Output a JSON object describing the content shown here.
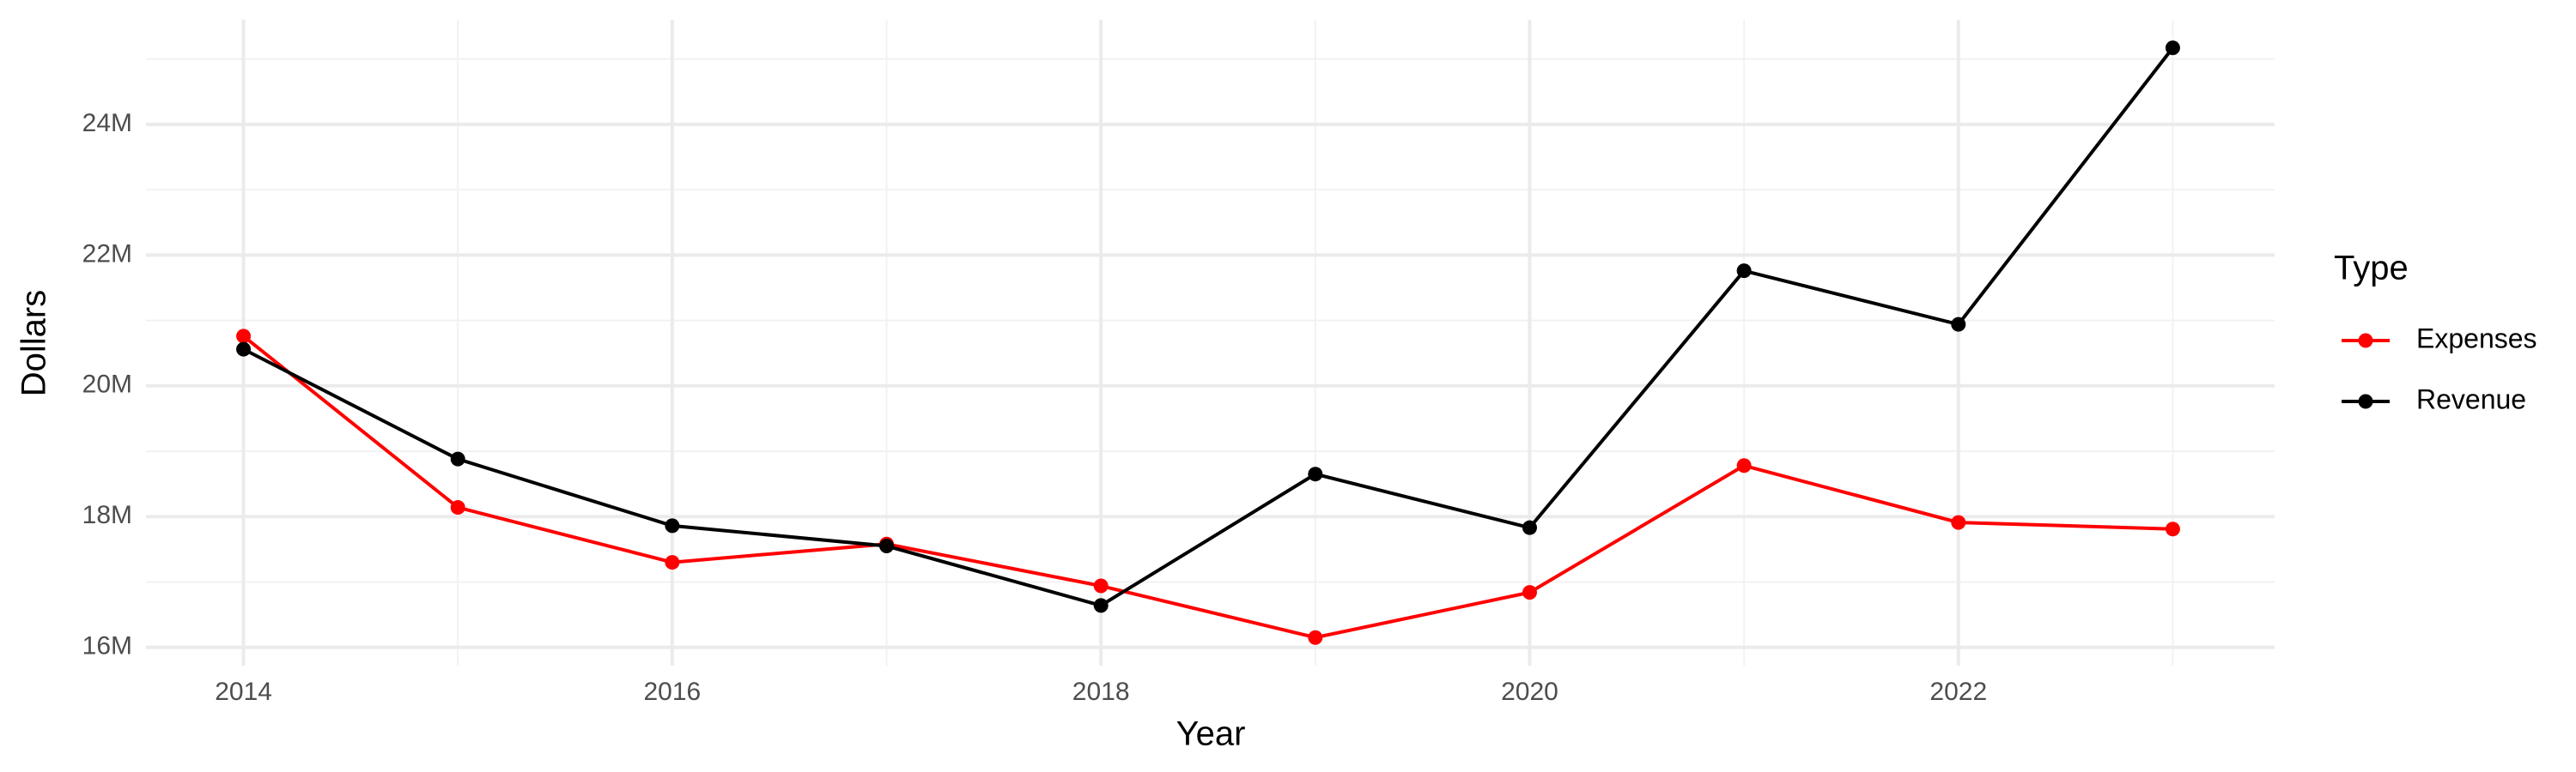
{
  "chart_data": {
    "type": "line",
    "x_label": "Year",
    "y_label": "Dollars",
    "legend_title": "Type",
    "x": [
      2014,
      2015,
      2016,
      2017,
      2018,
      2019,
      2020,
      2021,
      2022,
      2023
    ],
    "series": [
      {
        "name": "Expenses",
        "color": "#ff0000",
        "values": [
          20760000,
          18140000,
          17300000,
          17580000,
          16940000,
          16150000,
          16840000,
          18780000,
          17910000,
          17810000
        ]
      },
      {
        "name": "Revenue",
        "color": "#000000",
        "values": [
          20560000,
          18880000,
          17860000,
          17550000,
          16640000,
          18650000,
          17830000,
          21760000,
          20940000,
          25170000
        ]
      }
    ],
    "xlim": [
      2013.545,
      2023.475
    ],
    "xticks": [
      2014,
      2016,
      2018,
      2020,
      2022
    ],
    "ylim": [
      15720000,
      25600000
    ],
    "yticks": [
      {
        "value": 16000000,
        "label": "16M"
      },
      {
        "value": 18000000,
        "label": "18M"
      },
      {
        "value": 20000000,
        "label": "20M"
      },
      {
        "value": 22000000,
        "label": "22M"
      },
      {
        "value": 24000000,
        "label": "24M"
      }
    ],
    "grid": true,
    "legend_position": "right"
  }
}
